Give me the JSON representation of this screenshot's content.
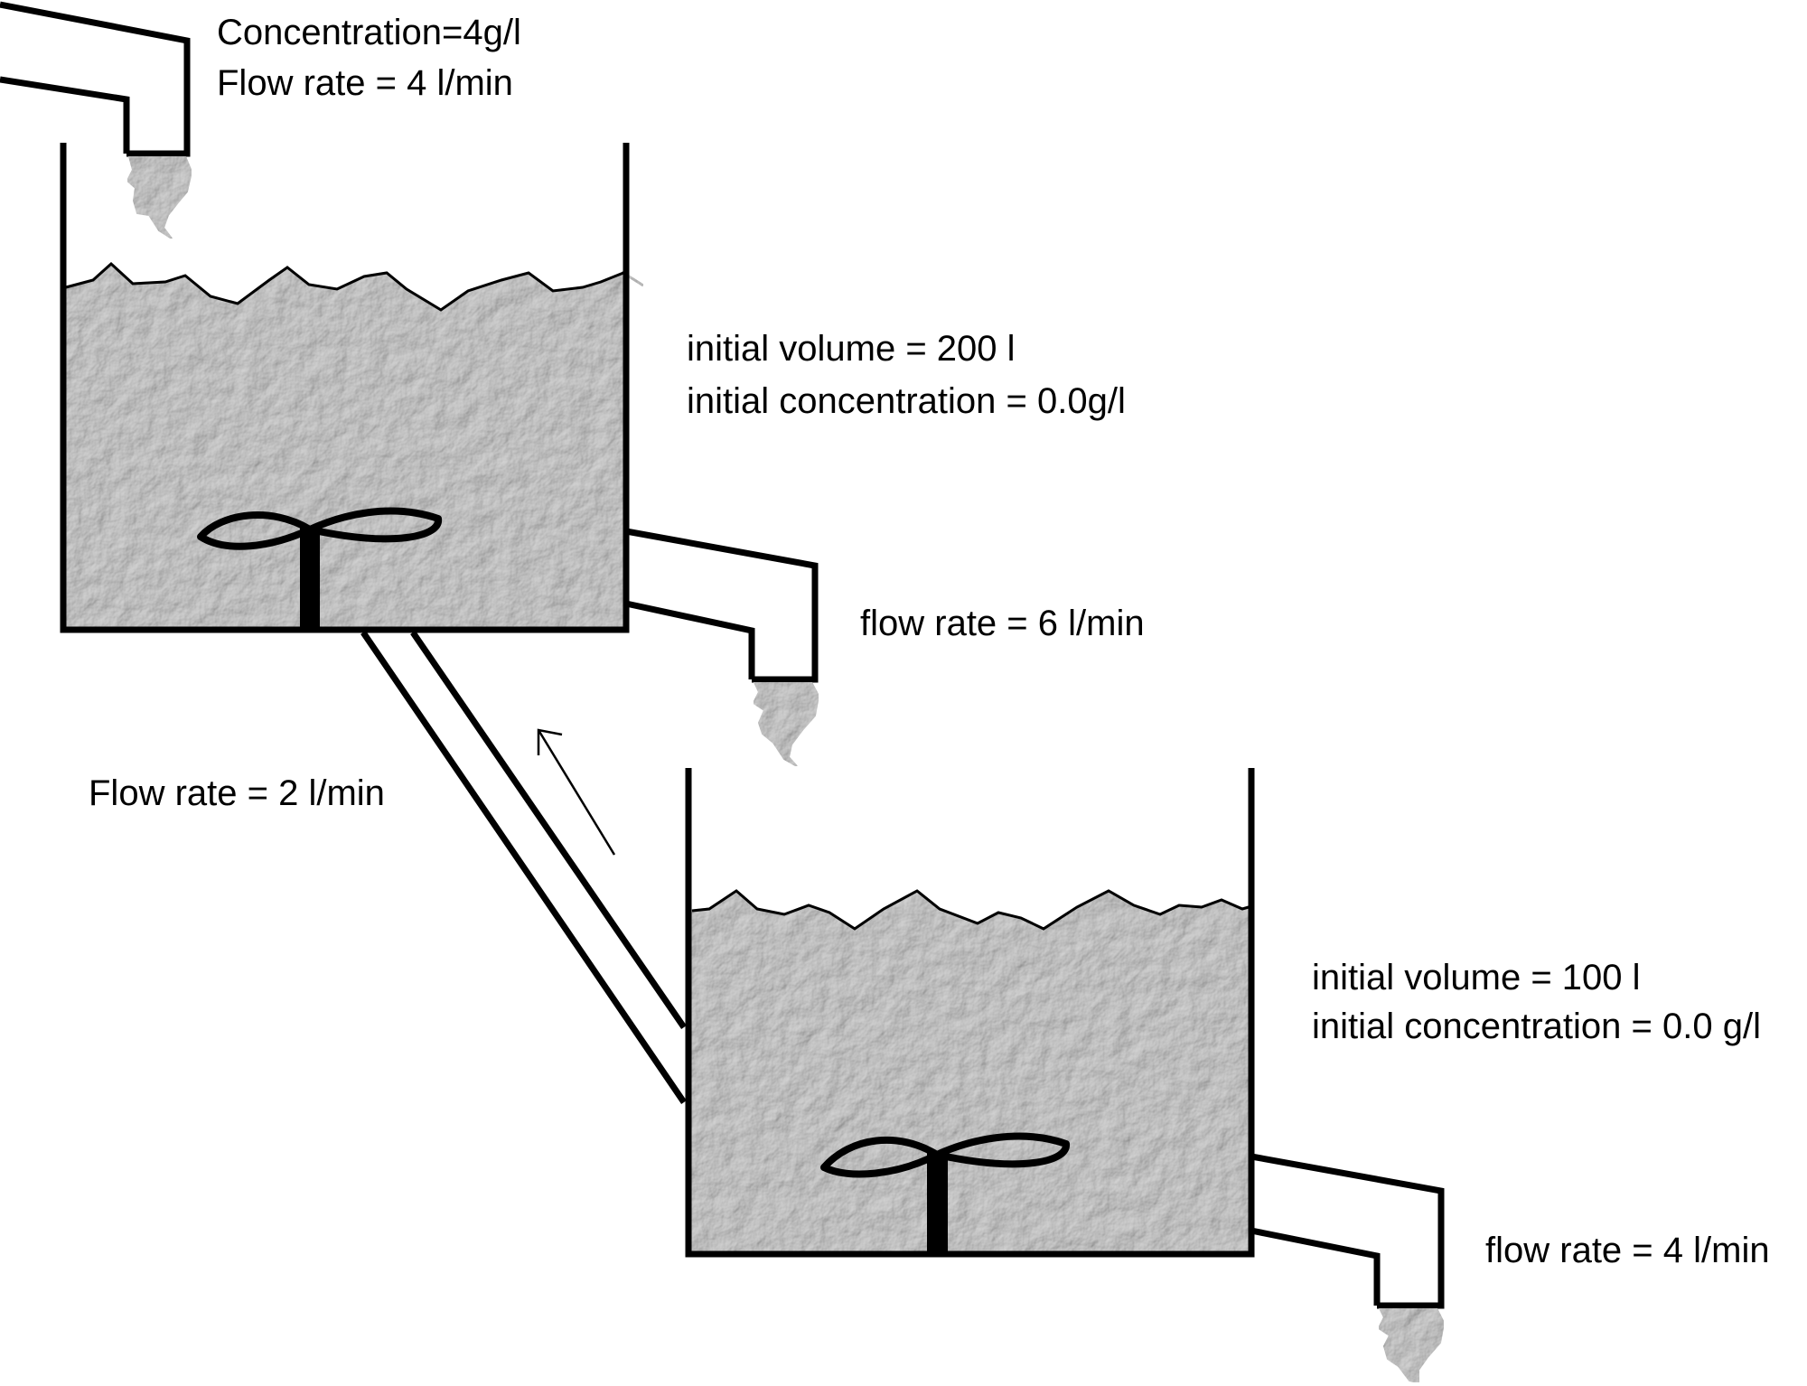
{
  "inlet": {
    "concentration": "Concentration=4g/l",
    "flow_rate": "Flow rate = 4 l/min"
  },
  "tank1": {
    "initial_volume": "initial volume = 200 l",
    "initial_concentration": "initial concentration = 0.0g/l",
    "outflow_rate": "flow rate = 6 l/min"
  },
  "connecting_pipe": {
    "flow_rate": "Flow rate = 2 l/min"
  },
  "tank2": {
    "initial_volume": "initial volume = 100 l",
    "initial_concentration": "initial concentration = 0.0 g/l",
    "outflow_rate": "flow rate = 4 l/min"
  },
  "colors": {
    "stroke": "#000000",
    "liquid": "#a9a9a9",
    "background": "#ffffff"
  }
}
